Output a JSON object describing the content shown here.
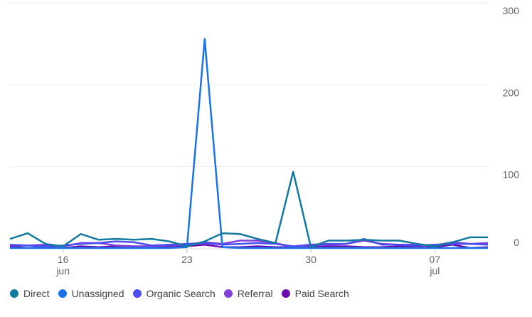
{
  "chart_data": {
    "type": "line",
    "x": [
      "Jun 13",
      "Jun 14",
      "Jun 15",
      "Jun 16",
      "Jun 17",
      "Jun 18",
      "Jun 19",
      "Jun 20",
      "Jun 21",
      "Jun 22",
      "Jun 23",
      "Jun 24",
      "Jun 25",
      "Jun 26",
      "Jun 27",
      "Jun 28",
      "Jun 29",
      "Jun 30",
      "Jul 1",
      "Jul 2",
      "Jul 3",
      "Jul 4",
      "Jul 5",
      "Jul 6",
      "Jul 7",
      "Jul 8",
      "Jul 9",
      "Jul 10"
    ],
    "x_ticks": [
      {
        "day": "16",
        "month": "jun",
        "x": "Jun 16"
      },
      {
        "day": "23",
        "month": "",
        "x": "Jun 23"
      },
      {
        "day": "30",
        "month": "",
        "x": "Jun 30"
      },
      {
        "day": "07",
        "month": "jul",
        "x": "Jul 7"
      }
    ],
    "ylim": [
      0,
      300
    ],
    "y_ticks": [
      "0",
      "100",
      "200",
      "300"
    ],
    "grid": true,
    "legend_position": "bottom-left",
    "series": [
      {
        "name": "Direct",
        "color": "#12799f",
        "values": [
          12,
          19,
          6,
          3,
          18,
          11,
          12,
          11,
          12,
          9,
          3,
          9,
          19,
          18,
          12,
          7,
          94,
          2,
          10,
          10,
          11,
          10,
          10,
          6,
          3,
          8,
          14,
          14
        ]
      },
      {
        "name": "Unassigned",
        "color": "#1a73e8",
        "values": [
          1,
          1,
          1,
          1,
          1,
          1,
          1,
          1,
          1,
          1,
          2,
          256,
          2,
          1,
          1,
          1,
          1,
          1,
          1,
          1,
          1,
          1,
          1,
          1,
          1,
          1,
          1,
          1
        ]
      },
      {
        "name": "Organic Search",
        "color": "#4c4cf0",
        "values": [
          5,
          4,
          3,
          4,
          6,
          7,
          9,
          8,
          4,
          5,
          6,
          7,
          5,
          6,
          7,
          6,
          3,
          5,
          6,
          6,
          12,
          5,
          5,
          4,
          5,
          6,
          6,
          5
        ]
      },
      {
        "name": "Referral",
        "color": "#7f3fd8",
        "values": [
          4,
          4,
          5,
          3,
          7,
          7,
          4,
          3,
          3,
          4,
          5,
          8,
          6,
          10,
          10,
          7,
          2,
          4,
          5,
          6,
          10,
          6,
          5,
          5,
          4,
          8,
          6,
          7
        ]
      },
      {
        "name": "Paid Search",
        "color": "#6a0dad",
        "values": [
          3,
          1,
          2,
          1,
          3,
          2,
          3,
          2,
          2,
          2,
          3,
          5,
          2,
          2,
          3,
          2,
          2,
          2,
          3,
          3,
          2,
          2,
          3,
          2,
          2,
          5,
          1,
          2
        ]
      }
    ]
  }
}
